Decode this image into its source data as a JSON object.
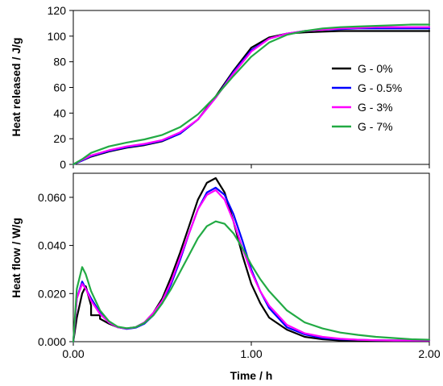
{
  "chart_data": [
    {
      "type": "line",
      "ylabel": "Heat released / J/g",
      "xlim": [
        0,
        2
      ],
      "ylim": [
        0,
        120
      ],
      "yticks": [
        0,
        20,
        40,
        60,
        80,
        100,
        120
      ],
      "ytick_labels": [
        "0",
        "20",
        "40",
        "60",
        "80",
        "100",
        "120"
      ],
      "grid": false,
      "legend_position": "right",
      "series": [
        {
          "name": "G - 0%",
          "color": "#000000",
          "x": [
            0,
            0.05,
            0.1,
            0.2,
            0.3,
            0.4,
            0.5,
            0.6,
            0.7,
            0.8,
            0.9,
            1.0,
            1.1,
            1.2,
            1.3,
            1.4,
            1.5,
            1.6,
            1.7,
            1.8,
            1.9,
            2.0
          ],
          "y": [
            0,
            3,
            6,
            10,
            13,
            15,
            18,
            24,
            35,
            53,
            73,
            91,
            99,
            102,
            103,
            103.5,
            104,
            104,
            104,
            104,
            104,
            104
          ]
        },
        {
          "name": "G - 0.5%",
          "color": "#0000ff",
          "x": [
            0,
            0.05,
            0.1,
            0.2,
            0.3,
            0.4,
            0.5,
            0.6,
            0.7,
            0.8,
            0.9,
            1.0,
            1.1,
            1.2,
            1.3,
            1.4,
            1.5,
            1.6,
            1.7,
            1.8,
            1.9,
            2.0
          ],
          "y": [
            0,
            3,
            6.5,
            10.5,
            13.5,
            15.5,
            18.5,
            24,
            35,
            52,
            72,
            89,
            98,
            102,
            104,
            105,
            105.5,
            106,
            106,
            106,
            106,
            106
          ]
        },
        {
          "name": "G - 3%",
          "color": "#ff00ff",
          "x": [
            0,
            0.05,
            0.1,
            0.2,
            0.3,
            0.4,
            0.5,
            0.6,
            0.7,
            0.8,
            0.9,
            1.0,
            1.1,
            1.2,
            1.3,
            1.4,
            1.5,
            1.6,
            1.7,
            1.8,
            1.9,
            2.0
          ],
          "y": [
            0,
            3.5,
            7,
            11,
            14,
            16,
            19,
            25,
            35,
            52,
            71,
            88,
            98,
            102,
            104,
            105,
            106,
            106.5,
            107,
            107,
            107,
            107
          ]
        },
        {
          "name": "G - 7%",
          "color": "#22aa44",
          "x": [
            0,
            0.05,
            0.1,
            0.2,
            0.3,
            0.4,
            0.5,
            0.6,
            0.7,
            0.8,
            0.9,
            1.0,
            1.1,
            1.2,
            1.3,
            1.4,
            1.5,
            1.6,
            1.7,
            1.8,
            1.9,
            2.0
          ],
          "y": [
            0,
            4,
            9,
            14,
            17,
            19.5,
            23,
            29,
            39,
            53,
            69,
            84,
            95,
            101,
            104,
            106,
            107,
            107.5,
            108,
            108.5,
            109,
            109
          ]
        }
      ]
    },
    {
      "type": "line",
      "xlabel": "Time / h",
      "ylabel": "Heat flow / W/g",
      "xlim": [
        0,
        2
      ],
      "ylim": [
        0,
        0.07
      ],
      "xticks": [
        0,
        1,
        2
      ],
      "xtick_labels": [
        "0.00",
        "1.00",
        "2.00"
      ],
      "yticks": [
        0,
        0.02,
        0.04,
        0.06
      ],
      "ytick_labels": [
        "0.000",
        "0.020",
        "0.040",
        "0.060"
      ],
      "grid": false,
      "series": [
        {
          "name": "G - 0%",
          "color": "#000000",
          "x": [
            0,
            0.02,
            0.05,
            0.07,
            0.1,
            0.1,
            0.15,
            0.15,
            0.2,
            0.25,
            0.3,
            0.35,
            0.4,
            0.45,
            0.5,
            0.55,
            0.6,
            0.65,
            0.7,
            0.75,
            0.8,
            0.85,
            0.9,
            0.95,
            1.0,
            1.05,
            1.1,
            1.2,
            1.3,
            1.4,
            1.5,
            1.6,
            1.7,
            1.8,
            1.9,
            2.0
          ],
          "y": [
            0,
            0.01,
            0.02,
            0.023,
            0.015,
            0.011,
            0.011,
            0.0095,
            0.0075,
            0.006,
            0.0055,
            0.006,
            0.008,
            0.012,
            0.018,
            0.027,
            0.037,
            0.048,
            0.059,
            0.066,
            0.068,
            0.062,
            0.05,
            0.036,
            0.024,
            0.016,
            0.01,
            0.005,
            0.002,
            0.001,
            0.0005,
            0.0005,
            0.0005,
            0.0005,
            0.0005,
            0.0005
          ]
        },
        {
          "name": "G - 0.5%",
          "color": "#0000ff",
          "x": [
            0,
            0.02,
            0.05,
            0.07,
            0.1,
            0.15,
            0.2,
            0.25,
            0.3,
            0.35,
            0.4,
            0.45,
            0.5,
            0.55,
            0.6,
            0.65,
            0.7,
            0.75,
            0.8,
            0.85,
            0.9,
            0.95,
            1.0,
            1.05,
            1.1,
            1.2,
            1.3,
            1.4,
            1.5,
            1.6,
            1.7,
            1.8,
            1.9,
            2.0
          ],
          "y": [
            0,
            0.018,
            0.025,
            0.022,
            0.018,
            0.012,
            0.008,
            0.006,
            0.0053,
            0.0058,
            0.0075,
            0.011,
            0.016,
            0.024,
            0.034,
            0.045,
            0.055,
            0.062,
            0.064,
            0.061,
            0.053,
            0.042,
            0.03,
            0.021,
            0.014,
            0.006,
            0.003,
            0.0015,
            0.001,
            0.0008,
            0.0006,
            0.0005,
            0.0005,
            0.0005
          ]
        },
        {
          "name": "G - 3%",
          "color": "#ff00ff",
          "x": [
            0,
            0.02,
            0.05,
            0.07,
            0.1,
            0.15,
            0.2,
            0.25,
            0.3,
            0.35,
            0.4,
            0.45,
            0.5,
            0.55,
            0.6,
            0.65,
            0.7,
            0.75,
            0.8,
            0.85,
            0.9,
            0.95,
            1.0,
            1.05,
            1.1,
            1.2,
            1.3,
            1.4,
            1.5,
            1.6,
            1.7,
            1.8,
            1.9,
            2.0
          ],
          "y": [
            0,
            0.018,
            0.024,
            0.022,
            0.017,
            0.0115,
            0.008,
            0.006,
            0.0055,
            0.006,
            0.008,
            0.012,
            0.017,
            0.025,
            0.035,
            0.045,
            0.055,
            0.061,
            0.063,
            0.059,
            0.05,
            0.039,
            0.029,
            0.021,
            0.015,
            0.007,
            0.0035,
            0.002,
            0.0012,
            0.0008,
            0.0006,
            0.0005,
            0.0005,
            0.0005
          ]
        },
        {
          "name": "G - 7%",
          "color": "#22aa44",
          "x": [
            0,
            0.02,
            0.05,
            0.07,
            0.1,
            0.15,
            0.2,
            0.25,
            0.3,
            0.35,
            0.4,
            0.45,
            0.5,
            0.55,
            0.6,
            0.65,
            0.7,
            0.75,
            0.8,
            0.85,
            0.9,
            0.95,
            1.0,
            1.05,
            1.1,
            1.2,
            1.3,
            1.4,
            1.5,
            1.6,
            1.7,
            1.8,
            1.9,
            2.0
          ],
          "y": [
            0,
            0.022,
            0.031,
            0.028,
            0.021,
            0.013,
            0.0085,
            0.0062,
            0.0056,
            0.006,
            0.0078,
            0.011,
            0.016,
            0.022,
            0.029,
            0.036,
            0.043,
            0.048,
            0.05,
            0.049,
            0.045,
            0.039,
            0.032,
            0.026,
            0.021,
            0.013,
            0.008,
            0.0055,
            0.0038,
            0.0028,
            0.002,
            0.0015,
            0.001,
            0.0008
          ]
        }
      ]
    }
  ]
}
